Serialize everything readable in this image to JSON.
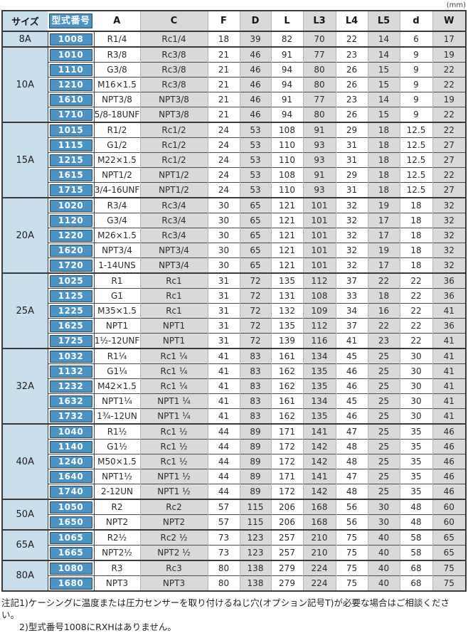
{
  "unit_label": "(mm)",
  "table": {
    "headers": [
      "サイズ",
      "型式番号",
      "A",
      "C",
      "F",
      "D",
      "L",
      "L3",
      "L4",
      "L5",
      "d",
      "W"
    ],
    "col_keys": [
      "A",
      "C",
      "F",
      "D",
      "L",
      "L3",
      "L4",
      "L5",
      "d",
      "W"
    ],
    "groups": [
      {
        "size": "8A",
        "rows": [
          [
            "1008",
            "R1/4",
            "Rc1/4",
            "18",
            "39",
            "82",
            "70",
            "22",
            "14",
            "6",
            "17"
          ]
        ]
      },
      {
        "size": "10A",
        "rows": [
          [
            "1010",
            "R3/8",
            "Rc3/8",
            "21",
            "46",
            "91",
            "77",
            "23",
            "14",
            "9",
            "19"
          ],
          [
            "1110",
            "G3/8",
            "Rc3/8",
            "21",
            "46",
            "94",
            "80",
            "26",
            "15",
            "9",
            "22"
          ],
          [
            "1210",
            "M16×1.5",
            "Rc3/8",
            "21",
            "46",
            "94",
            "80",
            "26",
            "15",
            "9",
            "22"
          ],
          [
            "1610",
            "NPT3/8",
            "NPT3/8",
            "21",
            "46",
            "91",
            "77",
            "23",
            "14",
            "9",
            "19"
          ],
          [
            "1710",
            "5/8-18UNF",
            "NPT3/8",
            "21",
            "46",
            "94",
            "80",
            "26",
            "15",
            "9",
            "22"
          ]
        ]
      },
      {
        "size": "15A",
        "rows": [
          [
            "1015",
            "R1/2",
            "Rc1/2",
            "24",
            "53",
            "108",
            "91",
            "29",
            "18",
            "12.5",
            "22"
          ],
          [
            "1115",
            "G1/2",
            "Rc1/2",
            "24",
            "53",
            "110",
            "93",
            "31",
            "18",
            "12.5",
            "27"
          ],
          [
            "1215",
            "M22×1.5",
            "Rc1/2",
            "24",
            "53",
            "110",
            "93",
            "31",
            "18",
            "12.5",
            "27"
          ],
          [
            "1615",
            "NPT1/2",
            "NPT1/2",
            "24",
            "53",
            "108",
            "91",
            "29",
            "18",
            "12.5",
            "22"
          ],
          [
            "1715",
            "3/4-16UNF",
            "NPT1/2",
            "24",
            "53",
            "110",
            "93",
            "31",
            "18",
            "12.5",
            "27"
          ]
        ]
      },
      {
        "size": "20A",
        "rows": [
          [
            "1020",
            "R3/4",
            "Rc3/4",
            "30",
            "65",
            "121",
            "101",
            "32",
            "19",
            "18",
            "32"
          ],
          [
            "1120",
            "G3/4",
            "Rc3/4",
            "30",
            "65",
            "121",
            "101",
            "32",
            "17",
            "18",
            "32"
          ],
          [
            "1220",
            "M26×1.5",
            "Rc3/4",
            "30",
            "65",
            "121",
            "101",
            "32",
            "17",
            "18",
            "32"
          ],
          [
            "1620",
            "NPT3/4",
            "NPT3/4",
            "30",
            "65",
            "121",
            "101",
            "32",
            "19",
            "18",
            "32"
          ],
          [
            "1720",
            "1-14UNS",
            "NPT3/4",
            "30",
            "65",
            "121",
            "101",
            "32",
            "17",
            "18",
            "32"
          ]
        ]
      },
      {
        "size": "25A",
        "rows": [
          [
            "1025",
            "R1",
            "Rc1",
            "31",
            "72",
            "135",
            "112",
            "37",
            "22",
            "22",
            "36"
          ],
          [
            "1125",
            "G1",
            "Rc1",
            "31",
            "72",
            "131",
            "108",
            "33",
            "18",
            "22",
            "36"
          ],
          [
            "1225",
            "M35×1.5",
            "Rc1",
            "31",
            "72",
            "132",
            "109",
            "34",
            "16",
            "22",
            "41"
          ],
          [
            "1625",
            "NPT1",
            "NPT1",
            "31",
            "72",
            "135",
            "112",
            "37",
            "22",
            "22",
            "36"
          ],
          [
            "1725",
            "1½-12UNF",
            "NPT1",
            "31",
            "72",
            "139",
            "116",
            "41",
            "23",
            "22",
            "41"
          ]
        ]
      },
      {
        "size": "32A",
        "rows": [
          [
            "1032",
            "R1¼",
            "Rc1 ¼",
            "41",
            "83",
            "161",
            "134",
            "45",
            "25",
            "30",
            "41"
          ],
          [
            "1132",
            "G1¼",
            "Rc1 ¼",
            "41",
            "83",
            "162",
            "135",
            "46",
            "25",
            "30",
            "41"
          ],
          [
            "1232",
            "M42×1.5",
            "Rc1 ¼",
            "41",
            "83",
            "162",
            "135",
            "46",
            "25",
            "30",
            "41"
          ],
          [
            "1632",
            "NPT1¼",
            "NPT1 ¼",
            "41",
            "83",
            "161",
            "134",
            "45",
            "25",
            "30",
            "41"
          ],
          [
            "1732",
            "1¾-12UN",
            "NPT1 ¼",
            "41",
            "83",
            "162",
            "135",
            "46",
            "25",
            "30",
            "41"
          ]
        ]
      },
      {
        "size": "40A",
        "rows": [
          [
            "1040",
            "R1½",
            "Rc1 ½",
            "44",
            "89",
            "171",
            "141",
            "47",
            "25",
            "35",
            "46"
          ],
          [
            "1140",
            "G1½",
            "Rc1 ½",
            "44",
            "89",
            "172",
            "142",
            "48",
            "25",
            "35",
            "46"
          ],
          [
            "1240",
            "M50×1.5",
            "Rc1 ½",
            "44",
            "89",
            "172",
            "142",
            "48",
            "25",
            "35",
            "46"
          ],
          [
            "1640",
            "NPT1½",
            "NPT1 ½",
            "44",
            "89",
            "171",
            "141",
            "47",
            "25",
            "35",
            "46"
          ],
          [
            "1740",
            "2-12UN",
            "NPT1 ½",
            "44",
            "89",
            "172",
            "142",
            "48",
            "25",
            "35",
            "46"
          ]
        ]
      },
      {
        "size": "50A",
        "rows": [
          [
            "1050",
            "R2",
            "Rc2",
            "57",
            "115",
            "206",
            "168",
            "56",
            "30",
            "48",
            "60"
          ],
          [
            "1650",
            "NPT2",
            "NPT2",
            "57",
            "115",
            "206",
            "168",
            "56",
            "30",
            "48",
            "60"
          ]
        ]
      },
      {
        "size": "65A",
        "rows": [
          [
            "1065",
            "R2½",
            "Rc2 ½",
            "73",
            "123",
            "257",
            "210",
            "75",
            "40",
            "58",
            "65"
          ],
          [
            "1665",
            "NPT2½",
            "NPT2 ½",
            "73",
            "123",
            "257",
            "210",
            "75",
            "40",
            "58",
            "65"
          ]
        ]
      },
      {
        "size": "80A",
        "rows": [
          [
            "1080",
            "R3",
            "Rc3",
            "80",
            "138",
            "279",
            "224",
            "75",
            "40",
            "68",
            "75"
          ],
          [
            "1680",
            "NPT3",
            "NPT3",
            "80",
            "138",
            "279",
            "224",
            "75",
            "40",
            "68",
            "75"
          ]
        ]
      }
    ]
  },
  "notes": [
    "注記1)ケーシングに温度または圧力センサーを取り付けるねじ穴(オプション記号T)が必要な場合はご相談ください。",
    "2)型式番号1008にRXHはありません。"
  ],
  "colors": {
    "model_blue": "#4b93c4",
    "size_light_blue": "#cadfee",
    "shade_gray": "#d9d9d9",
    "border_dark": "#3a3a3a"
  }
}
